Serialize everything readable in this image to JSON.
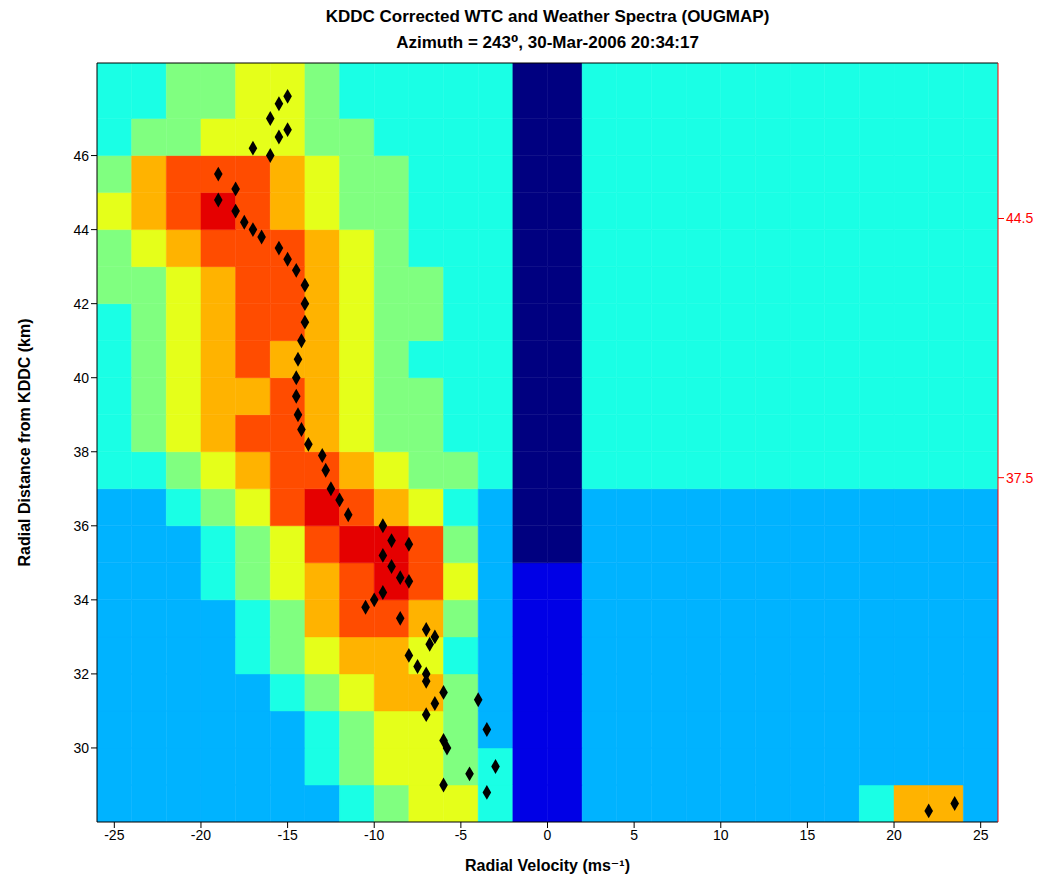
{
  "chart_data": {
    "type": "heatmap",
    "title": "KDDC Corrected WTC and Weather Spectra (OUGMAP)",
    "subtitle": "Azimuth = 243⁰,  30-Mar-2006 20:34:17",
    "x_label": "Radial Velocity (ms⁻¹)",
    "y_label": "Radial Distance from KDDC (km)",
    "xlim": [
      -26,
      26
    ],
    "xticks": [
      -25,
      -20,
      -15,
      -10,
      -5,
      0,
      5,
      10,
      15,
      20,
      25
    ],
    "ylim": [
      28,
      48.5
    ],
    "yticks": [
      30,
      32,
      34,
      36,
      38,
      40,
      42,
      44,
      46
    ],
    "y2lim": [
      28.2,
      48.7
    ],
    "y2ticks": [
      37.5,
      44.5
    ],
    "x_edges": [
      -26,
      -24,
      -22,
      -20,
      -18,
      -16,
      -14,
      -12,
      -10,
      -8,
      -6,
      -4,
      -2,
      0,
      2,
      4,
      6,
      8,
      10,
      12,
      14,
      16,
      18,
      20,
      22,
      24,
      26
    ],
    "y_edges": [
      28,
      29,
      30,
      31,
      32,
      33,
      34,
      35,
      36,
      37,
      38,
      39,
      40,
      41,
      42,
      43,
      44,
      45,
      46,
      47,
      48.5
    ],
    "color_range": [
      0,
      10
    ],
    "cells": [
      [
        3,
        3,
        3,
        3,
        3,
        3,
        3,
        4,
        5,
        6,
        6,
        4,
        1,
        1,
        3,
        3,
        3,
        3,
        3,
        3,
        3,
        3,
        4,
        7,
        7,
        3
      ],
      [
        3,
        3,
        3,
        3,
        3,
        3,
        4,
        5,
        6,
        6,
        5,
        4,
        1,
        1,
        3,
        3,
        3,
        3,
        3,
        3,
        3,
        3,
        3,
        3,
        3,
        3
      ],
      [
        3,
        3,
        3,
        3,
        3,
        3,
        4,
        5,
        6,
        6,
        5,
        3,
        1,
        1,
        3,
        3,
        3,
        3,
        3,
        3,
        3,
        3,
        3,
        3,
        3,
        3
      ],
      [
        3,
        3,
        3,
        3,
        3,
        4,
        5,
        6,
        7,
        7,
        5,
        3,
        1,
        1,
        3,
        3,
        3,
        3,
        3,
        3,
        3,
        3,
        3,
        3,
        3,
        3
      ],
      [
        3,
        3,
        3,
        3,
        4,
        5,
        6,
        7,
        7,
        6,
        4,
        3,
        1,
        1,
        3,
        3,
        3,
        3,
        3,
        3,
        3,
        3,
        3,
        3,
        3,
        3
      ],
      [
        3,
        3,
        3,
        3,
        4,
        5,
        7,
        8,
        8,
        7,
        5,
        3,
        1,
        1,
        3,
        3,
        3,
        3,
        3,
        3,
        3,
        3,
        3,
        3,
        3,
        3
      ],
      [
        3,
        3,
        3,
        4,
        5,
        6,
        7,
        8,
        9,
        8,
        6,
        3,
        1,
        1,
        3,
        3,
        3,
        3,
        3,
        3,
        3,
        3,
        3,
        3,
        3,
        3
      ],
      [
        3,
        3,
        3,
        4,
        5,
        6,
        8,
        9,
        9,
        8,
        5,
        3,
        0,
        0,
        3,
        3,
        3,
        3,
        3,
        3,
        3,
        3,
        3,
        3,
        3,
        3
      ],
      [
        3,
        3,
        4,
        5,
        6,
        8,
        9,
        8,
        7,
        6,
        4,
        3,
        0,
        0,
        3,
        3,
        3,
        3,
        3,
        3,
        3,
        3,
        3,
        3,
        3,
        3
      ],
      [
        4,
        4,
        5,
        6,
        7,
        8,
        8,
        7,
        6,
        5,
        5,
        4,
        0,
        0,
        4,
        4,
        4,
        4,
        4,
        4,
        4,
        4,
        4,
        4,
        4,
        4
      ],
      [
        4,
        5,
        6,
        7,
        8,
        8,
        7,
        6,
        5,
        5,
        4,
        4,
        0,
        0,
        4,
        4,
        4,
        4,
        4,
        4,
        4,
        4,
        4,
        4,
        4,
        4
      ],
      [
        4,
        5,
        6,
        7,
        7,
        8,
        7,
        6,
        5,
        5,
        4,
        4,
        0,
        0,
        4,
        4,
        4,
        4,
        4,
        4,
        4,
        4,
        4,
        4,
        4,
        4
      ],
      [
        4,
        5,
        6,
        7,
        8,
        7,
        7,
        6,
        5,
        4,
        4,
        4,
        0,
        0,
        4,
        4,
        4,
        4,
        4,
        4,
        4,
        4,
        4,
        4,
        4,
        4
      ],
      [
        4,
        5,
        6,
        7,
        8,
        8,
        7,
        6,
        5,
        5,
        4,
        4,
        0,
        0,
        4,
        4,
        4,
        4,
        4,
        4,
        4,
        4,
        4,
        4,
        4,
        4
      ],
      [
        5,
        5,
        6,
        7,
        8,
        8,
        7,
        6,
        5,
        5,
        4,
        4,
        0,
        0,
        4,
        4,
        4,
        4,
        4,
        4,
        4,
        4,
        4,
        4,
        4,
        4
      ],
      [
        5,
        6,
        7,
        8,
        8,
        8,
        7,
        6,
        5,
        4,
        4,
        4,
        0,
        0,
        4,
        4,
        4,
        4,
        4,
        4,
        4,
        4,
        4,
        4,
        4,
        4
      ],
      [
        6,
        7,
        8,
        9,
        8,
        7,
        6,
        5,
        5,
        4,
        4,
        4,
        0,
        0,
        4,
        4,
        4,
        4,
        4,
        4,
        4,
        4,
        4,
        4,
        4,
        4
      ],
      [
        5,
        7,
        8,
        8,
        8,
        7,
        6,
        5,
        5,
        4,
        4,
        4,
        0,
        0,
        4,
        4,
        4,
        4,
        4,
        4,
        4,
        4,
        4,
        4,
        4,
        4
      ],
      [
        4,
        5,
        5,
        6,
        6,
        6,
        5,
        5,
        4,
        4,
        4,
        4,
        0,
        0,
        4,
        4,
        4,
        4,
        4,
        4,
        4,
        4,
        4,
        4,
        4,
        4
      ],
      [
        4,
        4,
        5,
        5,
        6,
        6,
        5,
        4,
        4,
        4,
        4,
        4,
        0,
        0,
        4,
        4,
        4,
        4,
        4,
        4,
        4,
        4,
        4,
        4,
        4,
        4
      ]
    ],
    "series": [
      {
        "type": "scatter",
        "marker": "diamond",
        "color": "#000000",
        "x": [
          -15,
          -15.5,
          -16,
          -15,
          -15.5,
          -17,
          -16,
          -19,
          -18,
          -19,
          -18,
          -17.5,
          -17,
          -16.5,
          -15.5,
          -15,
          -14.5,
          -14,
          -14,
          -14,
          -14.2,
          -14.4,
          -14.5,
          -14.5,
          -14.4,
          -14.2,
          -13.8,
          -13,
          -12.8,
          -12.5,
          -12,
          -11.5,
          -9.5,
          -8,
          -9,
          -9.5,
          -9,
          -8.5,
          -8,
          -9.5,
          -10,
          -10.5,
          -8.5,
          -7,
          -6.5,
          -6.8,
          -8,
          -7.5,
          -7,
          -7,
          -6,
          -6.5,
          -7,
          -6,
          -5.8,
          -6,
          -4,
          -3.5,
          -3,
          -4.5,
          -3.5,
          22,
          23.5
        ],
        "y": [
          47.6,
          47.4,
          47,
          46.7,
          46.5,
          46.2,
          46,
          45.5,
          45.1,
          44.8,
          44.5,
          44.2,
          44,
          43.8,
          43.5,
          43.2,
          42.9,
          42.5,
          42,
          41.5,
          41,
          40.5,
          40,
          39.5,
          39,
          38.6,
          38.2,
          37.9,
          37.5,
          37,
          36.7,
          36.3,
          36,
          35.5,
          35.6,
          35.2,
          34.9,
          34.6,
          34.5,
          34.2,
          34,
          33.8,
          33.5,
          33.2,
          33,
          32.8,
          32.5,
          32.2,
          32,
          31.8,
          31.5,
          31.2,
          30.9,
          30.2,
          30,
          29,
          31.3,
          30.5,
          29.5,
          29.3,
          28.8,
          28.3,
          28.5
        ]
      }
    ]
  }
}
